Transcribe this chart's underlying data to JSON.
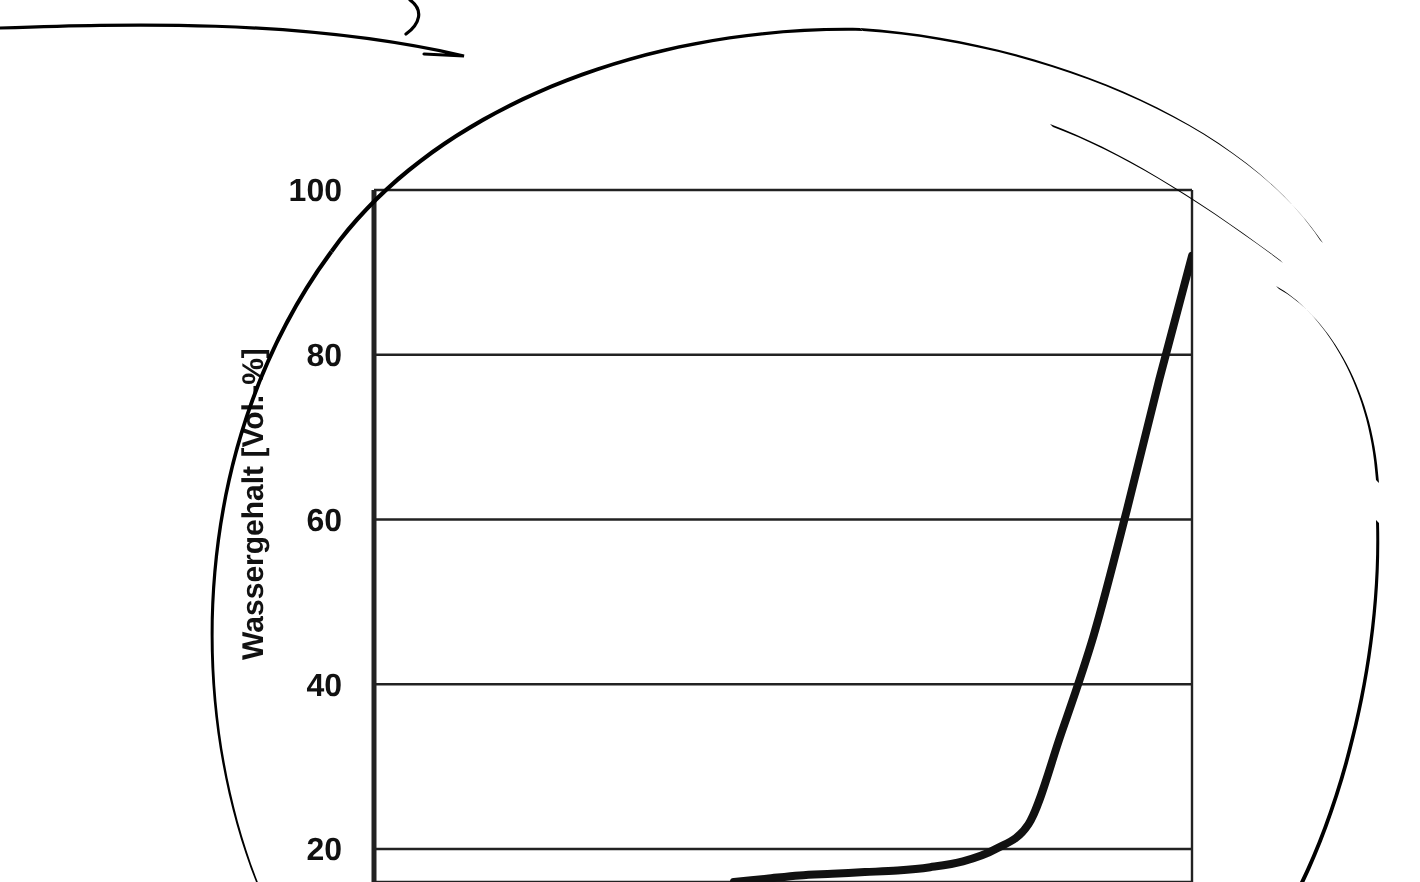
{
  "chart_data": {
    "type": "line",
    "ylabel": "Wassergehalt [Vol.-%]",
    "categories": [
      null,
      null,
      null,
      null,
      null,
      null,
      null,
      null,
      null,
      null,
      null,
      null,
      null,
      null,
      null,
      null,
      null,
      null,
      null,
      null,
      null,
      null,
      null,
      null,
      null,
      null
    ],
    "series": [
      {
        "color": "#111111",
        "values": [
          null,
          null,
          null,
          null,
          null,
          null,
          null,
          null,
          null,
          null,
          null,
          16,
          16.4,
          16.8,
          17,
          17.2,
          17.4,
          17.8,
          18.5,
          20,
          23,
          34,
          46,
          61,
          77,
          92
        ]
      }
    ],
    "ylim": [
      16,
      100
    ],
    "yticks": [
      20,
      40,
      60,
      80,
      100
    ],
    "grid": true,
    "tick_labels": "y",
    "marker": "none",
    "line_style": "solid"
  }
}
